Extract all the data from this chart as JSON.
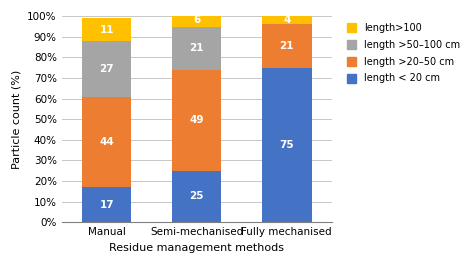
{
  "categories": [
    "Manual",
    "Semi-mechanised",
    "Fully mechanised"
  ],
  "series": [
    {
      "label": "length < 20 cm",
      "values": [
        17,
        25,
        75
      ],
      "color": "#4472C4"
    },
    {
      "label": "length >20–50 cm",
      "values": [
        44,
        49,
        21
      ],
      "color": "#ED7D31"
    },
    {
      "label": "length >50–100 cm",
      "values": [
        27,
        21,
        0
      ],
      "color": "#A5A5A5"
    },
    {
      "label": "length>100",
      "values": [
        11,
        6,
        4
      ],
      "color": "#FFC000"
    }
  ],
  "xlabel": "Residue management methods",
  "ylabel": "Particle count (%)",
  "ylim": [
    0,
    100
  ],
  "yticks": [
    0,
    10,
    20,
    30,
    40,
    50,
    60,
    70,
    80,
    90,
    100
  ],
  "ytick_labels": [
    "0%",
    "10%",
    "20%",
    "30%",
    "40%",
    "50%",
    "60%",
    "70%",
    "80%",
    "90%",
    "100%"
  ],
  "legend_labels": [
    "length>100",
    "length >50–100 cm",
    "length >20–50 cm",
    "length < 20 cm"
  ],
  "legend_colors": [
    "#FFC000",
    "#A5A5A5",
    "#ED7D31",
    "#4472C4"
  ],
  "bar_width": 0.55,
  "background_color": "#FFFFFF",
  "grid_color": "#BEBEBE",
  "figsize": [
    4.74,
    2.71
  ],
  "dpi": 100
}
